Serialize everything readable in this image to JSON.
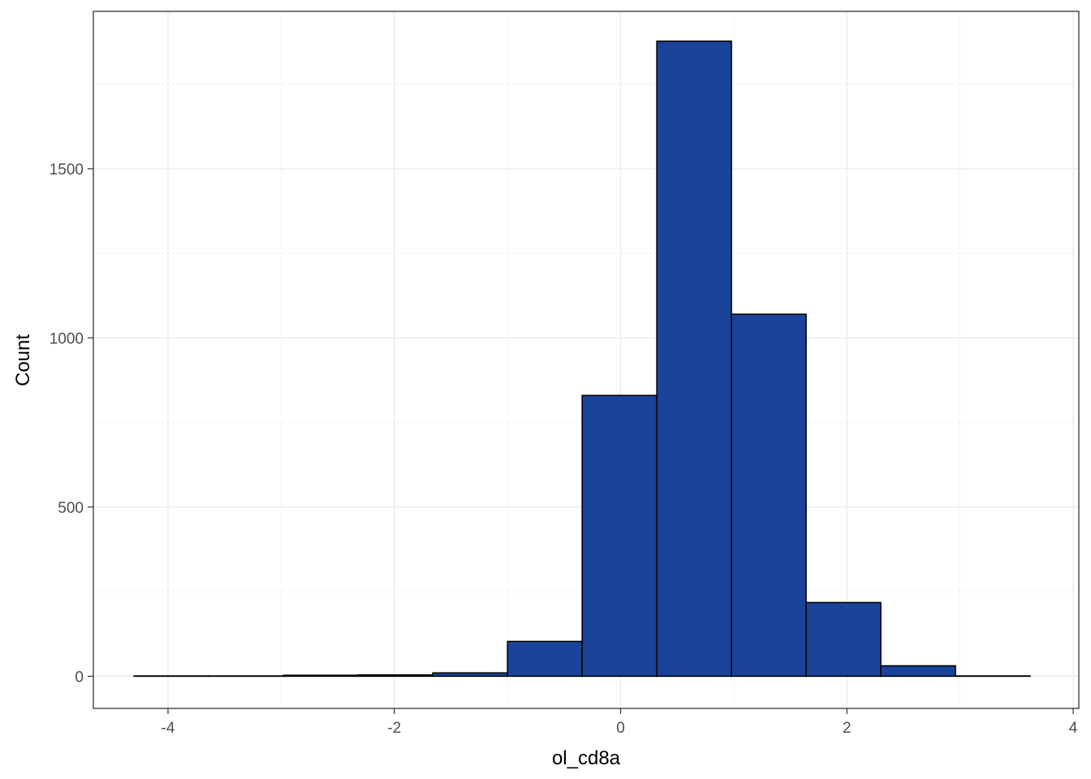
{
  "chart_data": {
    "type": "bar",
    "subtype": "histogram",
    "xlabel": "ol_cd8a",
    "ylabel": "Count",
    "xlim": [
      -4.66,
      4.05
    ],
    "ylim": [
      -95,
      1965
    ],
    "x_ticks": [
      -4,
      -2,
      0,
      2,
      4
    ],
    "x_tick_labels": [
      "-4",
      "-2",
      "0",
      "2",
      "4"
    ],
    "y_ticks": [
      0,
      500,
      1000,
      1500
    ],
    "y_tick_labels": [
      "0",
      "500",
      "1000",
      "1500"
    ],
    "grid": true,
    "bar_color": "#1A4399",
    "bar_edge_color": "#000000",
    "bins": [
      {
        "x0": -4.3,
        "x1": -3.64,
        "count": 1
      },
      {
        "x0": -3.64,
        "x1": -2.98,
        "count": 1
      },
      {
        "x0": -2.98,
        "x1": -2.32,
        "count": 3
      },
      {
        "x0": -2.32,
        "x1": -1.66,
        "count": 4
      },
      {
        "x0": -1.66,
        "x1": -1.0,
        "count": 10
      },
      {
        "x0": -1.0,
        "x1": -0.34,
        "count": 103
      },
      {
        "x0": -0.34,
        "x1": 0.32,
        "count": 830
      },
      {
        "x0": 0.32,
        "x1": 0.98,
        "count": 1877
      },
      {
        "x0": 0.98,
        "x1": 1.64,
        "count": 1070
      },
      {
        "x0": 1.64,
        "x1": 2.3,
        "count": 218
      },
      {
        "x0": 2.3,
        "x1": 2.96,
        "count": 31
      },
      {
        "x0": 2.96,
        "x1": 3.62,
        "count": 1
      }
    ]
  }
}
